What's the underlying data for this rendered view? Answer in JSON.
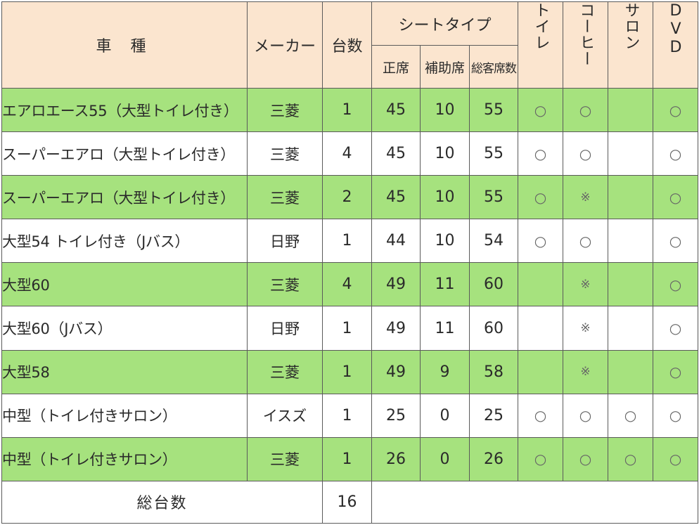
{
  "headers": {
    "vehicle": "車 種",
    "maker": "メーカー",
    "count": "台数",
    "seat_type": "シートタイプ",
    "regular_seats": "正席",
    "aux_seats": "補助席",
    "total_seats": "総客席数",
    "toilet": "トイレ",
    "coffee": "コーヒー",
    "salon": "サロン",
    "dvd": "DVD"
  },
  "rows": [
    {
      "vehicle": "エアロエース55（大型トイレ付き）",
      "maker": "三菱",
      "count": "1",
      "regular": "45",
      "aux": "10",
      "total": "55",
      "toilet": "○",
      "coffee": "○",
      "salon": "",
      "dvd": "○"
    },
    {
      "vehicle": "スーパーエアロ（大型トイレ付き）",
      "maker": "三菱",
      "count": "4",
      "regular": "45",
      "aux": "10",
      "total": "55",
      "toilet": "○",
      "coffee": "○",
      "salon": "",
      "dvd": "○"
    },
    {
      "vehicle": "スーパーエアロ（大型トイレ付き）",
      "maker": "三菱",
      "count": "2",
      "regular": "45",
      "aux": "10",
      "total": "55",
      "toilet": "○",
      "coffee": "※",
      "salon": "",
      "dvd": "○"
    },
    {
      "vehicle": "大型54 トイレ付き（Jバス）",
      "maker": "日野",
      "count": "1",
      "regular": "44",
      "aux": "10",
      "total": "54",
      "toilet": "○",
      "coffee": "○",
      "salon": "",
      "dvd": "○"
    },
    {
      "vehicle": "大型60",
      "maker": "三菱",
      "count": "4",
      "regular": "49",
      "aux": "11",
      "total": "60",
      "toilet": "",
      "coffee": "※",
      "salon": "",
      "dvd": "○"
    },
    {
      "vehicle": "大型60（Jバス）",
      "maker": "日野",
      "count": "1",
      "regular": "49",
      "aux": "11",
      "total": "60",
      "toilet": "",
      "coffee": "※",
      "salon": "",
      "dvd": "○"
    },
    {
      "vehicle": "大型58",
      "maker": "三菱",
      "count": "1",
      "regular": "49",
      "aux": "9",
      "total": "58",
      "toilet": "",
      "coffee": "※",
      "salon": "",
      "dvd": "○"
    },
    {
      "vehicle": "中型（トイレ付きサロン）",
      "maker": "イスズ",
      "count": "1",
      "regular": "25",
      "aux": "0",
      "total": "25",
      "toilet": "○",
      "coffee": "○",
      "salon": "○",
      "dvd": "○"
    },
    {
      "vehicle": "中型（トイレ付きサロン）",
      "maker": "三菱",
      "count": "1",
      "regular": "26",
      "aux": "0",
      "total": "26",
      "toilet": "○",
      "coffee": "○",
      "salon": "○",
      "dvd": "○"
    }
  ],
  "footer": {
    "label": "総台数",
    "total": "16"
  },
  "colors": {
    "header_bg": "#fbe5cf",
    "green_row": "#a6e27e",
    "border": "#5a5a5a"
  }
}
